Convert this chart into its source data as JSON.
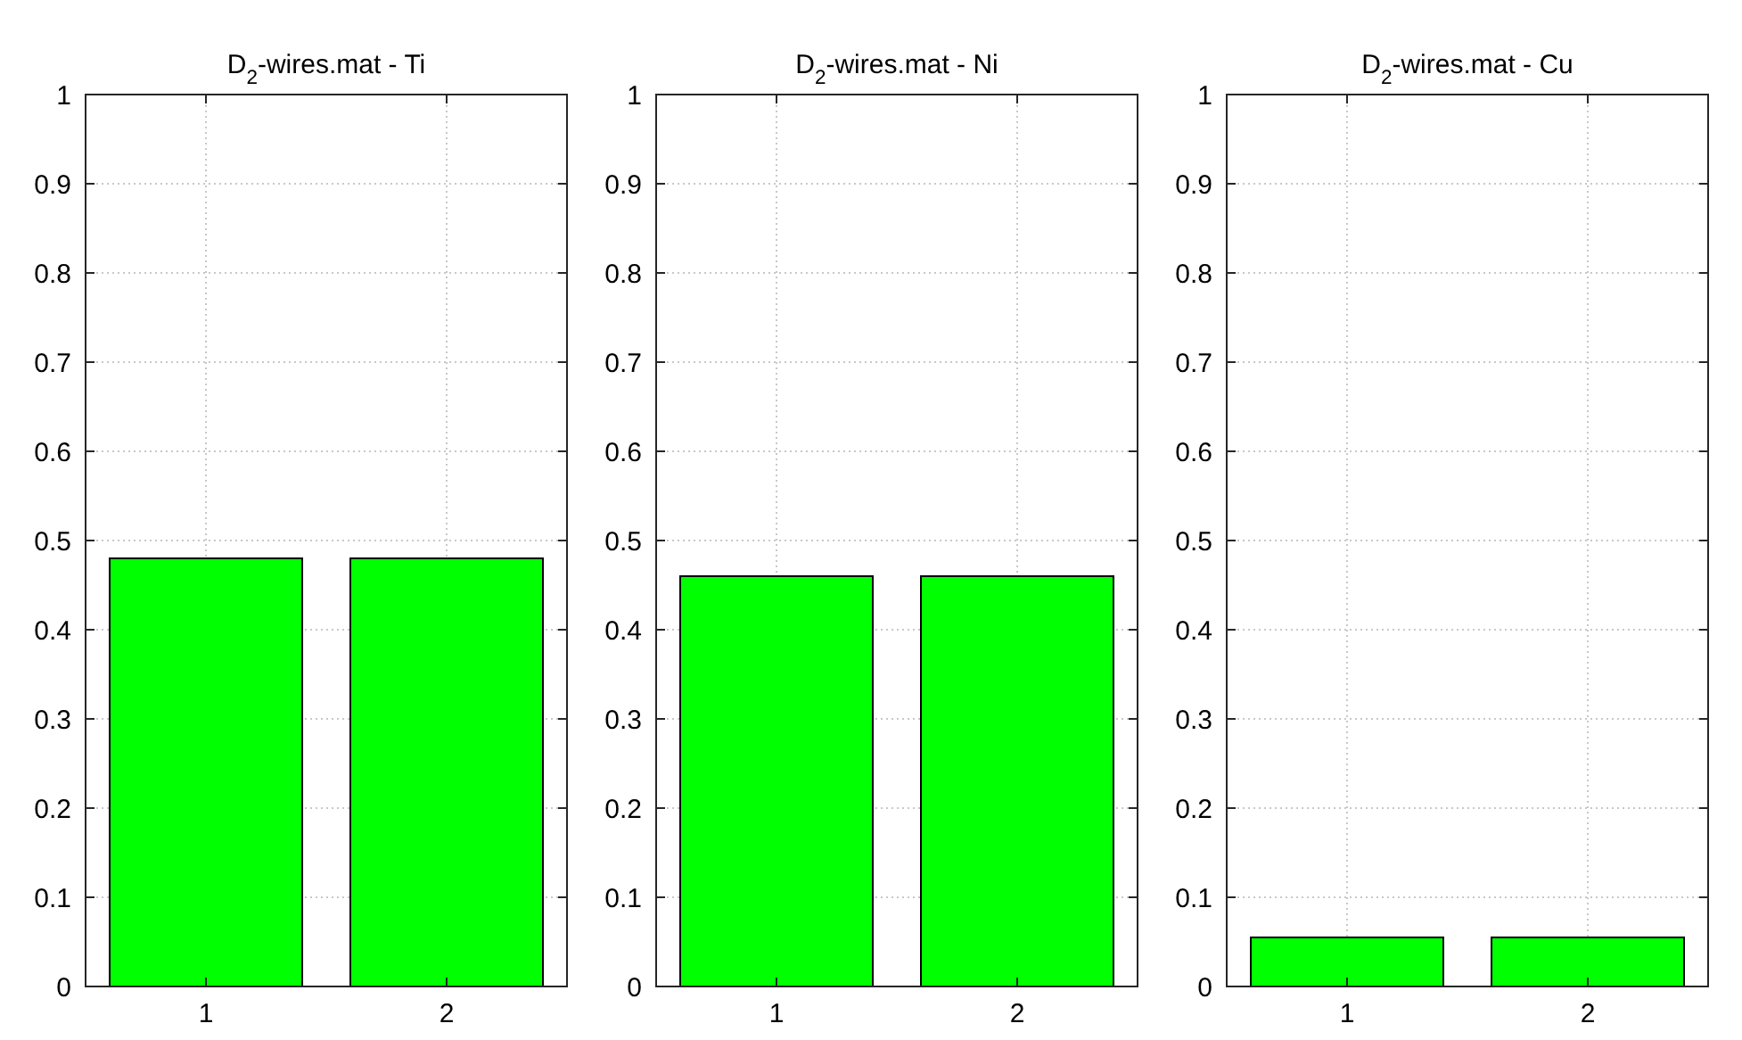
{
  "chart_data": [
    {
      "type": "bar",
      "title": "D$_{2}$-wires.mat - Ti",
      "categories": [
        "1",
        "2"
      ],
      "values": [
        0.48,
        0.48
      ],
      "color": "#00ff00",
      "ylim": [
        0,
        1
      ],
      "yticks": [
        0,
        0.1,
        0.2,
        0.3,
        0.4,
        0.5,
        0.6,
        0.7,
        0.8,
        0.9,
        1
      ],
      "grid": true
    },
    {
      "type": "bar",
      "title": "D$_{2}$-wires.mat - Ni",
      "categories": [
        "1",
        "2"
      ],
      "values": [
        0.46,
        0.46
      ],
      "color": "#00ff00",
      "ylim": [
        0,
        1
      ],
      "yticks": [
        0,
        0.1,
        0.2,
        0.3,
        0.4,
        0.5,
        0.6,
        0.7,
        0.8,
        0.9,
        1
      ],
      "grid": true
    },
    {
      "type": "bar",
      "title": "D$_{2}$-wires.mat - Cu",
      "categories": [
        "1",
        "2"
      ],
      "values": [
        0.055,
        0.055
      ],
      "color": "#00ff00",
      "ylim": [
        0,
        1
      ],
      "yticks": [
        0,
        0.1,
        0.2,
        0.3,
        0.4,
        0.5,
        0.6,
        0.7,
        0.8,
        0.9,
        1
      ],
      "grid": true
    }
  ]
}
